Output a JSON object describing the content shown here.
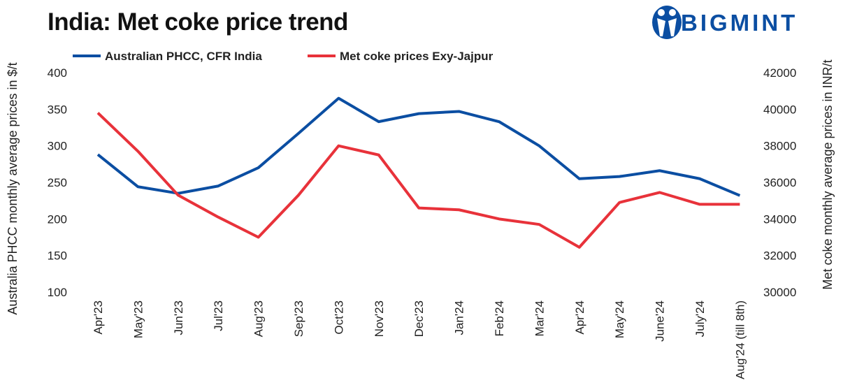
{
  "title": "India: Met coke price trend",
  "logo": "BIGMINT",
  "chart_data": {
    "type": "line",
    "title": "India: Met coke price trend",
    "categories": [
      "Apr'23",
      "May'23",
      "Jun'23",
      "Jul'23",
      "Aug'23",
      "Sep'23",
      "Oct'23",
      "Nov'23",
      "Dec'23",
      "Jan'24",
      "Feb'24",
      "Mar'24",
      "Apr'24",
      "May'24",
      "June'24",
      "July'24",
      "Aug'24 (till 8th)"
    ],
    "ylabel": "Australia PHCC monthly average prices in $/t",
    "y2label": "Met coke monthly average prices in INR/t",
    "ylim": [
      100,
      400
    ],
    "y2lim": [
      30000,
      42000
    ],
    "yticks": [
      100,
      150,
      200,
      250,
      300,
      350,
      400
    ],
    "y2ticks": [
      30000,
      32000,
      34000,
      36000,
      38000,
      40000,
      42000
    ],
    "grid": false,
    "legend": "top-left",
    "series": [
      {
        "name": "Australian PHCC, CFR India",
        "axis": "left",
        "color": "#0b4ea2",
        "values": [
          288,
          244,
          235,
          245,
          270,
          317,
          365,
          333,
          344,
          347,
          333,
          300,
          255,
          258,
          266,
          255,
          232
        ]
      },
      {
        "name": "Met coke prices Exy-Jajpur",
        "axis": "right",
        "color": "#e8323a",
        "values": [
          39800,
          37700,
          35300,
          34100,
          33000,
          35300,
          38000,
          37500,
          34600,
          34500,
          34000,
          33700,
          32450,
          34900,
          35450,
          34800,
          34800
        ]
      }
    ]
  }
}
